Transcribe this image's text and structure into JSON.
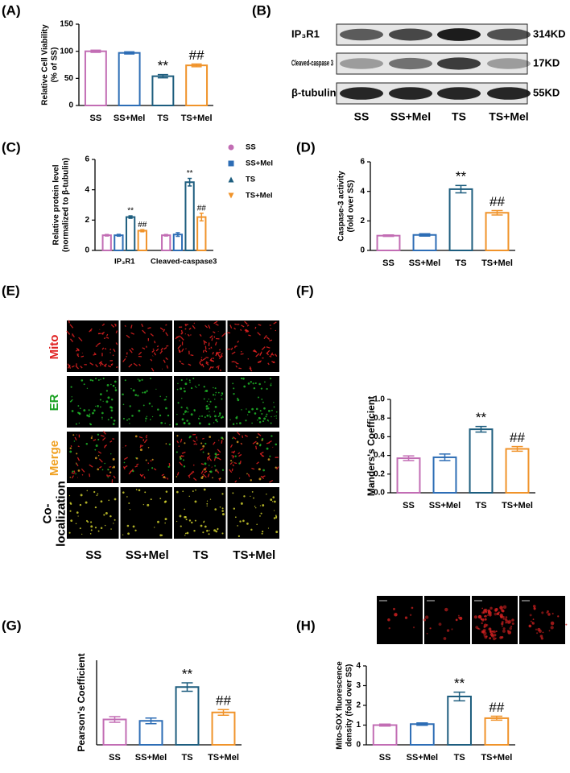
{
  "chart_data": [
    {
      "type": "bar",
      "panel": "(A)",
      "ylabel": [
        "Relative Cell Viability",
        "(% of SS)"
      ],
      "categories": [
        "SS",
        "SS+Mel",
        "TS",
        "TS+Mel"
      ],
      "values": [
        100,
        97,
        54,
        74
      ],
      "errors": [
        2,
        2,
        3,
        2.5
      ],
      "colors": [
        "#c26db4",
        "#2d6db5",
        "#1d5d7e",
        "#f0932a"
      ],
      "annotations": [
        null,
        null,
        "**",
        "##"
      ],
      "ylim": [
        0,
        150
      ],
      "yticks": [
        0,
        50,
        100,
        150
      ]
    },
    {
      "type": "bar",
      "panel": "(C)",
      "ylabel": [
        "Relative protein level",
        "(normalized to β-tubulin)"
      ],
      "categories": [
        "IP₃R1",
        "Cleaved-caspase3"
      ],
      "series": [
        {
          "name": "SS",
          "color": "#c26db4",
          "values": [
            1,
            1
          ],
          "errors": [
            0.05,
            0.05
          ],
          "annotations": [
            null,
            null
          ]
        },
        {
          "name": "SS+Mel",
          "color": "#2d6db5",
          "values": [
            1,
            1.05
          ],
          "errors": [
            0.06,
            0.12
          ],
          "annotations": [
            null,
            null
          ]
        },
        {
          "name": "TS",
          "color": "#1d5d7e",
          "values": [
            2.2,
            4.5
          ],
          "errors": [
            0.08,
            0.25
          ],
          "annotations": [
            "**",
            "**"
          ]
        },
        {
          "name": "TS+Mel",
          "color": "#f0932a",
          "values": [
            1.3,
            2.2
          ],
          "errors": [
            0.07,
            0.25
          ],
          "annotations": [
            "##",
            "##"
          ]
        }
      ],
      "ylim": [
        0,
        6
      ],
      "yticks": [
        0,
        2,
        4,
        6
      ]
    },
    {
      "type": "bar",
      "panel": "(D)",
      "ylabel": [
        "Caspase-3 activity",
        "(fold over SS)"
      ],
      "categories": [
        "SS",
        "SS+Mel",
        "TS",
        "TS+Mel"
      ],
      "values": [
        1,
        1.05,
        4.15,
        2.55
      ],
      "errors": [
        0.05,
        0.08,
        0.25,
        0.15
      ],
      "colors": [
        "#c26db4",
        "#2d6db5",
        "#1d5d7e",
        "#f0932a"
      ],
      "annotations": [
        null,
        null,
        "**",
        "##"
      ],
      "ylim": [
        0,
        6
      ],
      "yticks": [
        0,
        2,
        4,
        6
      ]
    },
    {
      "type": "bar",
      "panel": "(F)",
      "ylabel": [
        "Manders's Coefficient"
      ],
      "categories": [
        "SS",
        "SS+Mel",
        "TS",
        "TS+Mel"
      ],
      "values": [
        0.37,
        0.38,
        0.68,
        0.47
      ],
      "errors": [
        0.025,
        0.035,
        0.03,
        0.025
      ],
      "colors": [
        "#c26db4",
        "#2d6db5",
        "#1d5d7e",
        "#f0932a"
      ],
      "annotations": [
        null,
        null,
        "**",
        "##"
      ],
      "ylim": [
        0,
        1
      ],
      "yticks": [
        {
          "value": 0,
          "label": "0.0"
        },
        0.2,
        0.4,
        0.6,
        0.8,
        {
          "value": 1,
          "label": "1.0"
        }
      ]
    },
    {
      "type": "bar",
      "panel": "(G)",
      "ylabel": [
        "Pearson's Coefficient"
      ],
      "categories": [
        "SS",
        "SS+Mel",
        "TS",
        "TS+Mel"
      ],
      "values": [
        0.18,
        0.17,
        0.41,
        0.23
      ],
      "errors": [
        0.02,
        0.02,
        0.03,
        0.02
      ],
      "colors": [
        "#c26db4",
        "#2d6db5",
        "#1d5d7e",
        "#f0932a"
      ],
      "annotations": [
        null,
        null,
        "**",
        "##"
      ],
      "ylim": [
        0,
        0.6
      ]
    },
    {
      "type": "bar",
      "panel": "(H)",
      "ylabel": [
        "Mito-SOX fluorescence",
        "density (fold over SS)"
      ],
      "categories": [
        "SS",
        "SS+Mel",
        "TS",
        "TS+Mel"
      ],
      "values": [
        1,
        1.05,
        2.45,
        1.35
      ],
      "errors": [
        0.05,
        0.06,
        0.22,
        0.1
      ],
      "colors": [
        "#c26db4",
        "#2d6db5",
        "#1d5d7e",
        "#f0932a"
      ],
      "annotations": [
        null,
        null,
        "**",
        "##"
      ],
      "ylim": [
        0,
        4
      ],
      "yticks": [
        0,
        1,
        2,
        3,
        4
      ]
    }
  ],
  "blot": {
    "panel": "(B)",
    "lanes": [
      "SS",
      "SS+Mel",
      "TS",
      "TS+Mel"
    ],
    "rows": [
      {
        "label": "IP₃R1",
        "size": "314KD"
      },
      {
        "label": "Cleaved-caspase 3",
        "size": "17KD"
      },
      {
        "label": "β-tubulin",
        "size": "55KD"
      }
    ]
  },
  "microscopy": {
    "panel": "(E)",
    "columns": [
      "SS",
      "SS+Mel",
      "TS",
      "TS+Mel"
    ],
    "rows": [
      {
        "label": [
          "Mito"
        ]
      },
      {
        "label": [
          "ER"
        ]
      },
      {
        "label": [
          "Merge"
        ]
      },
      {
        "label": [
          "Co-",
          "localization"
        ]
      }
    ]
  }
}
